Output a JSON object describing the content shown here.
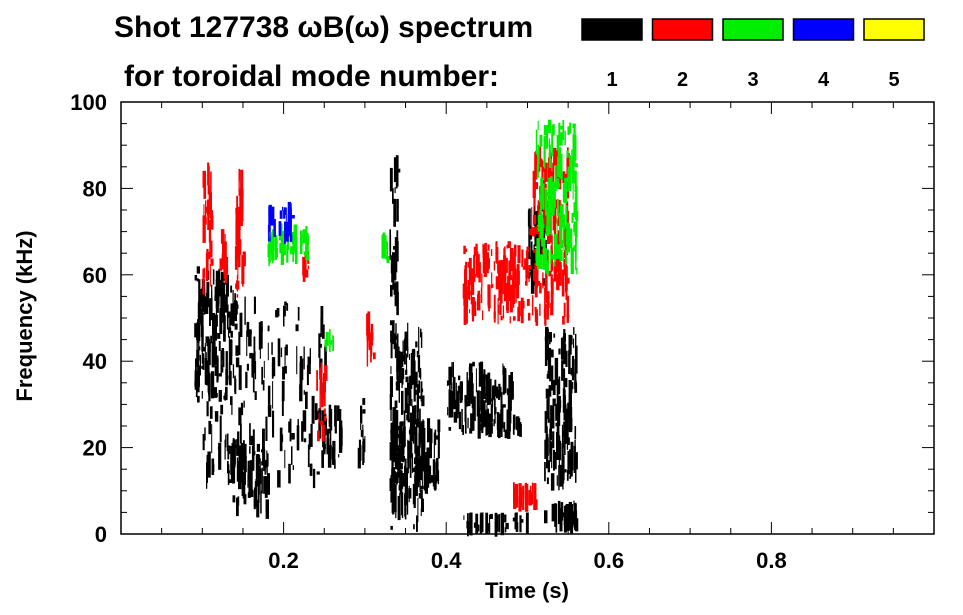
{
  "chart_data": {
    "type": "scatter",
    "title": "Shot 127738 ωB(ω) spectrum",
    "subtitle": "for toroidal mode number:",
    "xlabel": "Time (s)",
    "ylabel": "Frequency (kHz)",
    "xlim": [
      0.0,
      1.0
    ],
    "ylim": [
      0,
      100
    ],
    "x_ticks": [
      {
        "value": 0.2,
        "label": "0.2"
      },
      {
        "value": 0.4,
        "label": "0.4"
      },
      {
        "value": 0.6,
        "label": "0.6"
      },
      {
        "value": 0.8,
        "label": "0.8"
      }
    ],
    "y_ticks": [
      {
        "value": 0,
        "label": "0"
      },
      {
        "value": 20,
        "label": "20"
      },
      {
        "value": 40,
        "label": "40"
      },
      {
        "value": 60,
        "label": "60"
      },
      {
        "value": 80,
        "label": "80"
      },
      {
        "value": 100,
        "label": "100"
      }
    ],
    "grid": false,
    "legend_placement": "top-right",
    "legend": [
      {
        "label": "1",
        "color": "#000000"
      },
      {
        "label": "2",
        "color": "#ff0000"
      },
      {
        "label": "3",
        "color": "#00ee00"
      },
      {
        "label": "4",
        "color": "#0000ff"
      },
      {
        "label": "5",
        "color": "#ffff00"
      }
    ],
    "series": [
      {
        "mode": "1",
        "color": "#000000",
        "regions": [
          {
            "t": [
              0.09,
              0.14
            ],
            "f": [
              30,
              62
            ]
          },
          {
            "t": [
              0.1,
              0.25
            ],
            "f": [
              10,
              55
            ]
          },
          {
            "t": [
              0.13,
              0.18
            ],
            "f": [
              3,
              22
            ]
          },
          {
            "t": [
              0.24,
              0.27
            ],
            "f": [
              15,
              30
            ]
          },
          {
            "t": [
              0.29,
              0.3
            ],
            "f": [
              15,
              32
            ]
          },
          {
            "t": [
              0.33,
              0.34
            ],
            "f": [
              50,
              88
            ]
          },
          {
            "t": [
              0.33,
              0.37
            ],
            "f": [
              0,
              50
            ]
          },
          {
            "t": [
              0.33,
              0.39
            ],
            "f": [
              8,
              27
            ]
          },
          {
            "t": [
              0.4,
              0.48
            ],
            "f": [
              22,
              40
            ]
          },
          {
            "t": [
              0.45,
              0.49
            ],
            "f": [
              22,
              28
            ]
          },
          {
            "t": [
              0.42,
              0.5
            ],
            "f": [
              0,
              5
            ]
          },
          {
            "t": [
              0.5,
              0.52
            ],
            "f": [
              55,
              78
            ]
          },
          {
            "t": [
              0.52,
              0.56
            ],
            "f": [
              10,
              48
            ]
          },
          {
            "t": [
              0.52,
              0.56
            ],
            "f": [
              0,
              8
            ]
          }
        ]
      },
      {
        "mode": "2",
        "color": "#ff0000",
        "regions": [
          {
            "t": [
              0.1,
              0.11
            ],
            "f": [
              55,
              86
            ]
          },
          {
            "t": [
              0.12,
              0.13
            ],
            "f": [
              58,
              72
            ]
          },
          {
            "t": [
              0.14,
              0.15
            ],
            "f": [
              52,
              85
            ]
          },
          {
            "t": [
              0.22,
              0.23
            ],
            "f": [
              58,
              66
            ]
          },
          {
            "t": [
              0.24,
              0.25
            ],
            "f": [
              20,
              40
            ]
          },
          {
            "t": [
              0.3,
              0.31
            ],
            "f": [
              38,
              52
            ]
          },
          {
            "t": [
              0.42,
              0.5
            ],
            "f": [
              48,
              68
            ]
          },
          {
            "t": [
              0.5,
              0.55
            ],
            "f": [
              48,
              90
            ]
          },
          {
            "t": [
              0.48,
              0.51
            ],
            "f": [
              5,
              12
            ]
          }
        ]
      },
      {
        "mode": "3",
        "color": "#00ee00",
        "regions": [
          {
            "t": [
              0.18,
              0.23
            ],
            "f": [
              62,
              72
            ]
          },
          {
            "t": [
              0.25,
              0.26
            ],
            "f": [
              42,
              48
            ]
          },
          {
            "t": [
              0.32,
              0.33
            ],
            "f": [
              62,
              70
            ]
          },
          {
            "t": [
              0.51,
              0.56
            ],
            "f": [
              60,
              96
            ]
          }
        ]
      },
      {
        "mode": "4",
        "color": "#0000ff",
        "regions": [
          {
            "t": [
              0.18,
              0.21
            ],
            "f": [
              67,
              77
            ]
          }
        ]
      },
      {
        "mode": "5",
        "color": "#ffff00",
        "regions": []
      }
    ]
  }
}
